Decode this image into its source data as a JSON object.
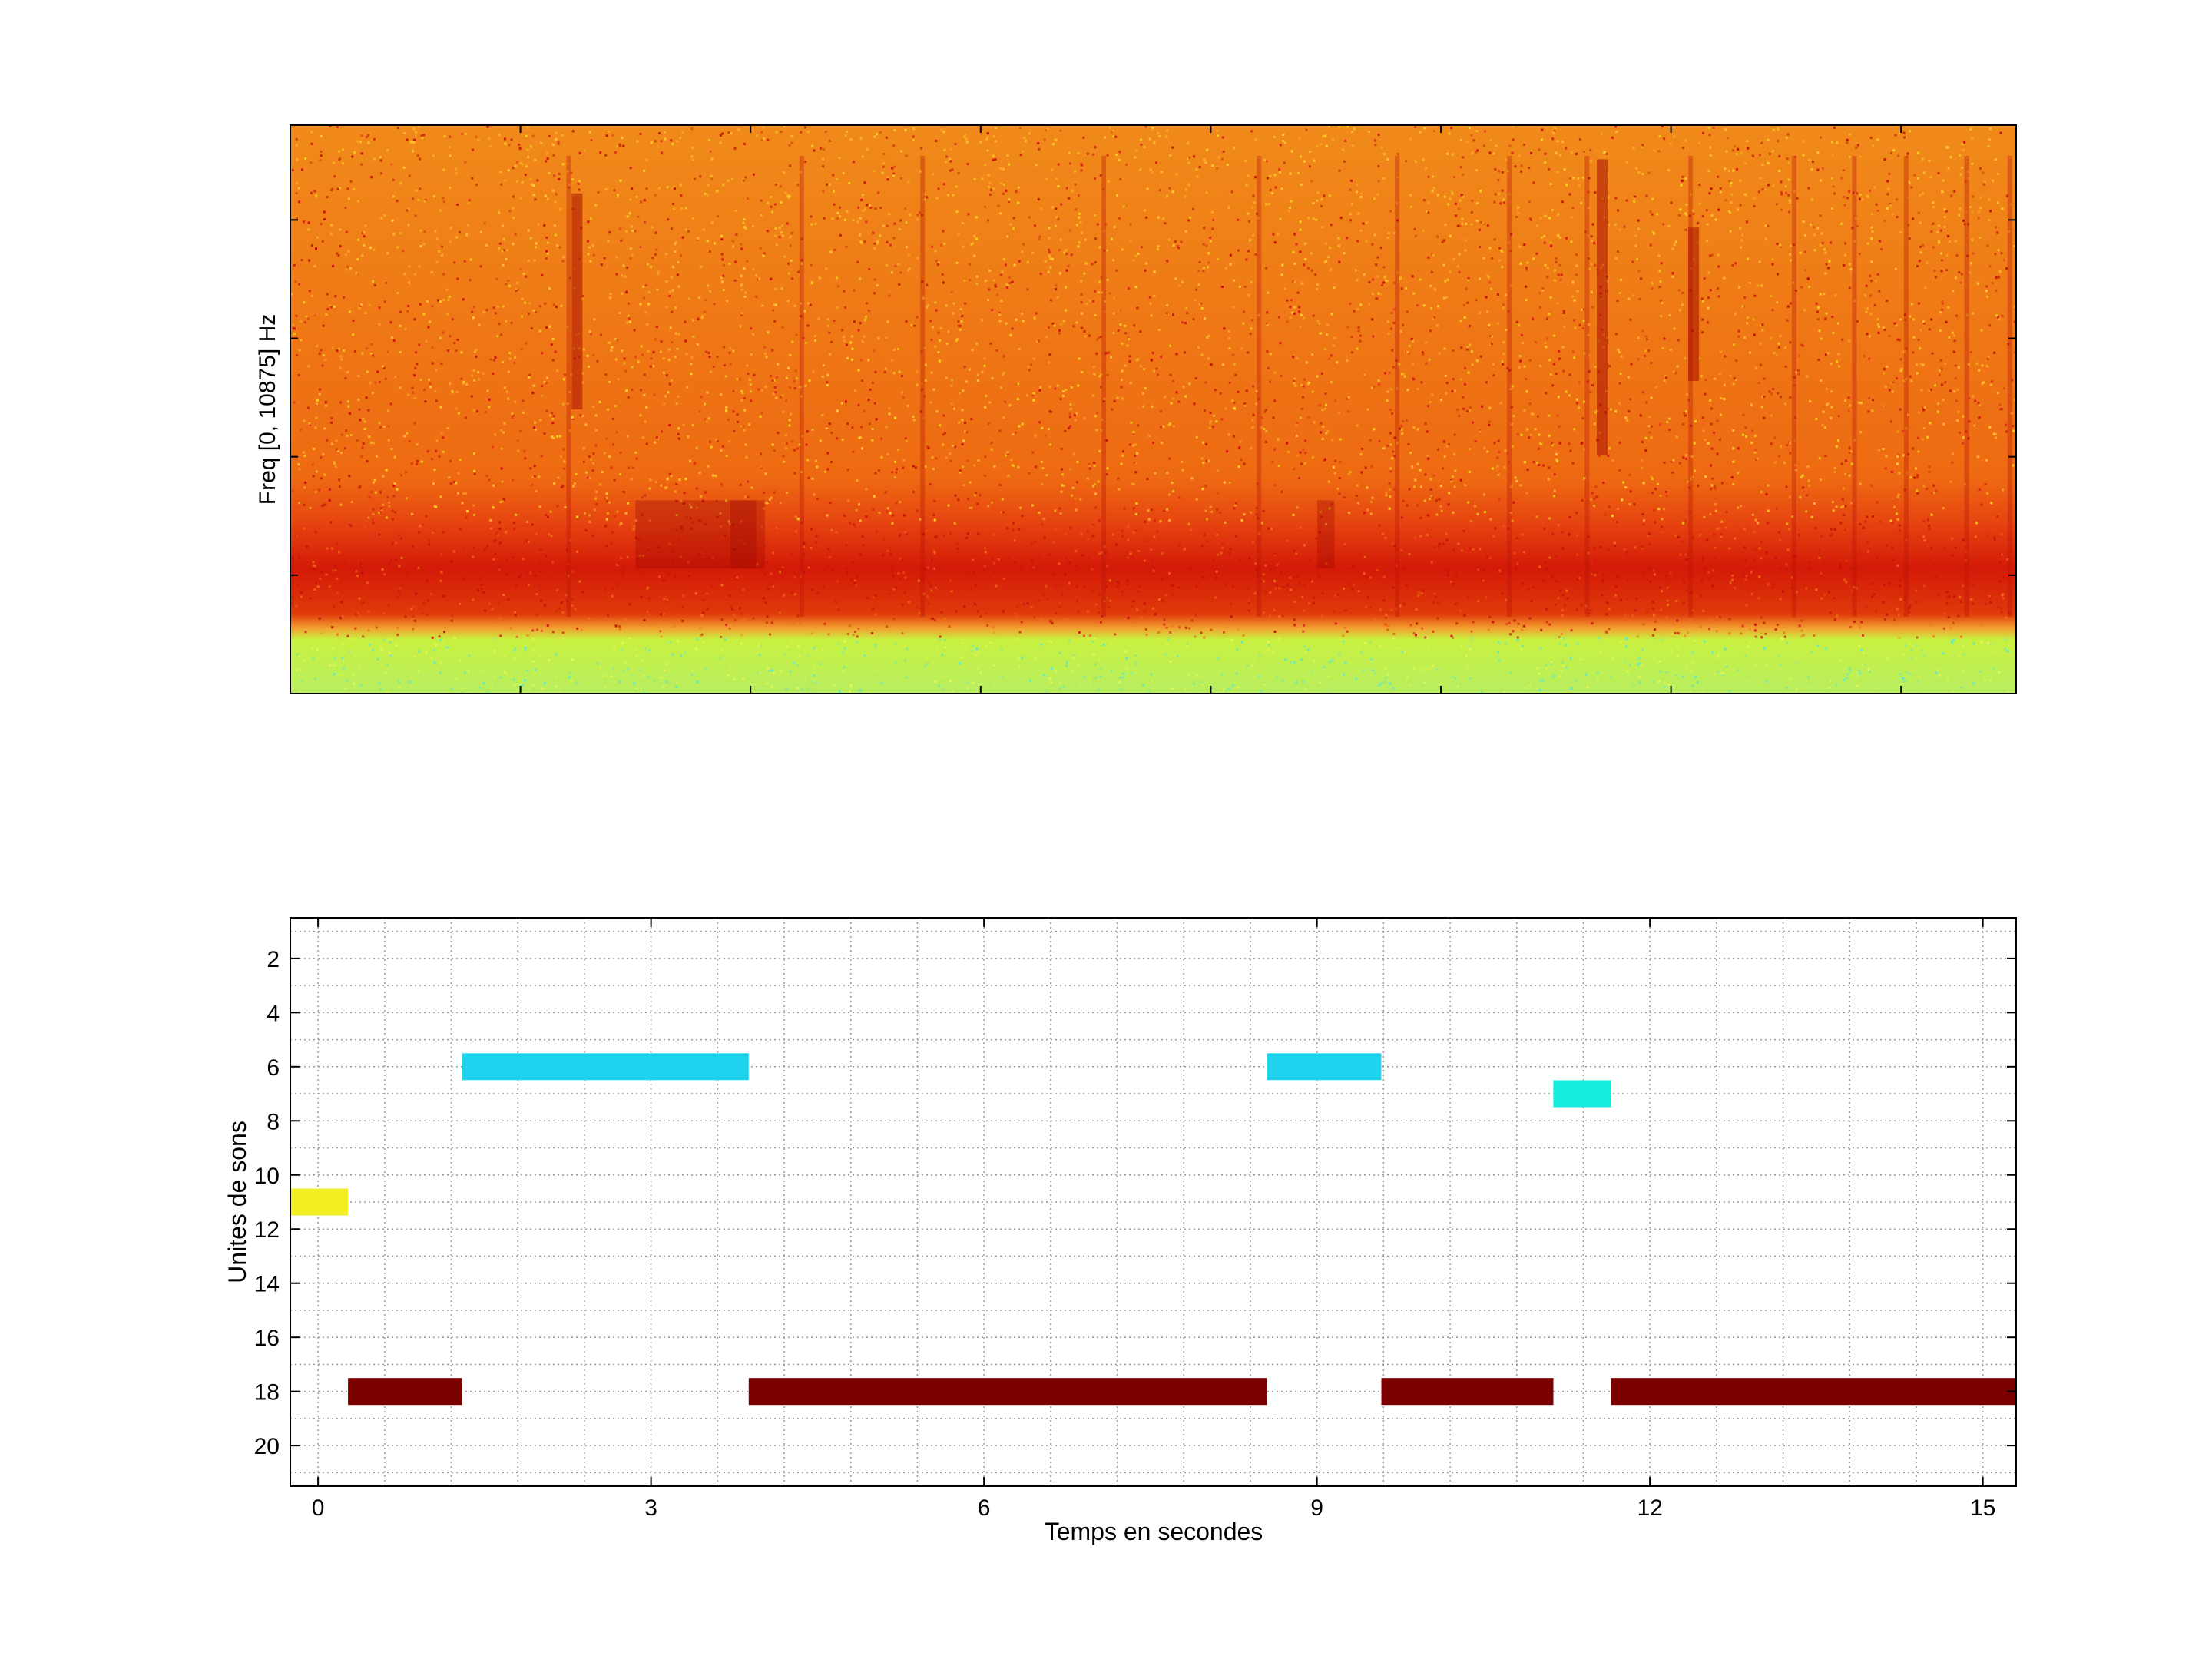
{
  "chart_data": [
    {
      "type": "heatmap",
      "ylabel": "Freq [0, 10875] Hz",
      "xlabel": "",
      "colormap": "jet",
      "colors": {
        "background": "#f06a10",
        "high_band": "#f08a1a",
        "dark_band": "#d41a08",
        "low_band": "#c8f040",
        "speckle_light": "#ffd02a",
        "speckle_dark": "#c81008",
        "speckle_low": "#60e8c8"
      }
    },
    {
      "type": "bar",
      "subtype": "horizontal-segments",
      "xlabel": "Temps en secondes",
      "ylabel": "Unites de sons",
      "xlim": [
        -0.25,
        15.3
      ],
      "ylim": [
        21.5,
        0.5
      ],
      "x_ticks": [
        0,
        3,
        6,
        9,
        12,
        15
      ],
      "y_ticks": [
        2,
        4,
        6,
        8,
        10,
        12,
        14,
        16,
        18,
        20
      ],
      "grid": true,
      "segments": [
        {
          "unit": 11,
          "start": -0.25,
          "end": 0.27,
          "color": "#f2ee20"
        },
        {
          "unit": 18,
          "start": 0.27,
          "end": 1.3,
          "color": "#7d0000"
        },
        {
          "unit": 6,
          "start": 1.3,
          "end": 3.88,
          "color": "#1fd3ef"
        },
        {
          "unit": 18,
          "start": 3.88,
          "end": 8.55,
          "color": "#7d0000"
        },
        {
          "unit": 6,
          "start": 8.55,
          "end": 9.58,
          "color": "#1fd3ef"
        },
        {
          "unit": 18,
          "start": 9.58,
          "end": 11.13,
          "color": "#7d0000"
        },
        {
          "unit": 7,
          "start": 11.13,
          "end": 11.65,
          "color": "#16ecdc"
        },
        {
          "unit": 18,
          "start": 11.65,
          "end": 15.3,
          "color": "#7d0000"
        }
      ]
    }
  ]
}
